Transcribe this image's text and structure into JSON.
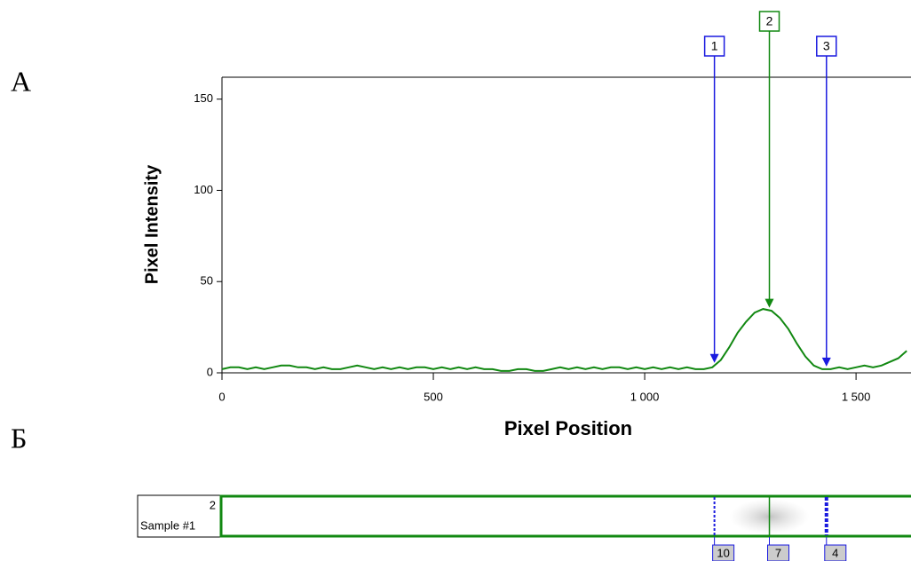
{
  "chart_data": {
    "type": "line",
    "panel_labels": [
      "А",
      "Б"
    ],
    "ylabel": "Pixel Intensity",
    "xlabel": "Pixel Position",
    "color": "#118811",
    "xlim": [
      0,
      1630
    ],
    "xticks": [
      0,
      500,
      {
        "value": 1000,
        "label": "1 000"
      },
      {
        "value": 1500,
        "label": "1 500"
      }
    ],
    "ylim": [
      0,
      162
    ],
    "yticks": [
      0,
      50,
      100,
      150
    ],
    "x": [
      0,
      20,
      40,
      60,
      80,
      100,
      120,
      140,
      160,
      180,
      200,
      220,
      240,
      260,
      280,
      300,
      320,
      340,
      360,
      380,
      400,
      420,
      440,
      460,
      480,
      500,
      520,
      540,
      560,
      580,
      600,
      620,
      640,
      660,
      680,
      700,
      720,
      740,
      760,
      780,
      800,
      820,
      840,
      860,
      880,
      900,
      920,
      940,
      960,
      980,
      1000,
      1020,
      1040,
      1060,
      1080,
      1100,
      1120,
      1140,
      1160,
      1180,
      1200,
      1220,
      1240,
      1260,
      1280,
      1300,
      1320,
      1340,
      1360,
      1380,
      1400,
      1420,
      1440,
      1460,
      1480,
      1500,
      1520,
      1540,
      1560,
      1580,
      1600,
      1620
    ],
    "values": [
      2,
      3,
      3,
      2,
      3,
      2,
      3,
      4,
      4,
      3,
      3,
      2,
      3,
      2,
      2,
      3,
      4,
      3,
      2,
      3,
      2,
      3,
      2,
      3,
      3,
      2,
      3,
      2,
      3,
      2,
      3,
      2,
      2,
      1,
      1,
      2,
      2,
      1,
      1,
      2,
      3,
      2,
      3,
      2,
      3,
      2,
      3,
      3,
      2,
      3,
      2,
      3,
      2,
      3,
      2,
      3,
      2,
      2,
      3,
      7,
      14,
      22,
      28,
      33,
      35,
      34,
      30,
      24,
      16,
      9,
      4,
      2,
      2,
      3,
      2,
      3,
      4,
      3,
      4,
      6,
      8,
      12
    ],
    "markers": [
      {
        "label": "1",
        "x": 1165,
        "color": "#1a1adf"
      },
      {
        "label": "2",
        "x": 1295,
        "color": "#118811"
      },
      {
        "label": "3",
        "x": 1430,
        "color": "#1a1adf"
      }
    ],
    "lane": {
      "number": "2",
      "name": "Sample #1",
      "band_labels": [
        "10",
        "7",
        "4"
      ]
    }
  }
}
